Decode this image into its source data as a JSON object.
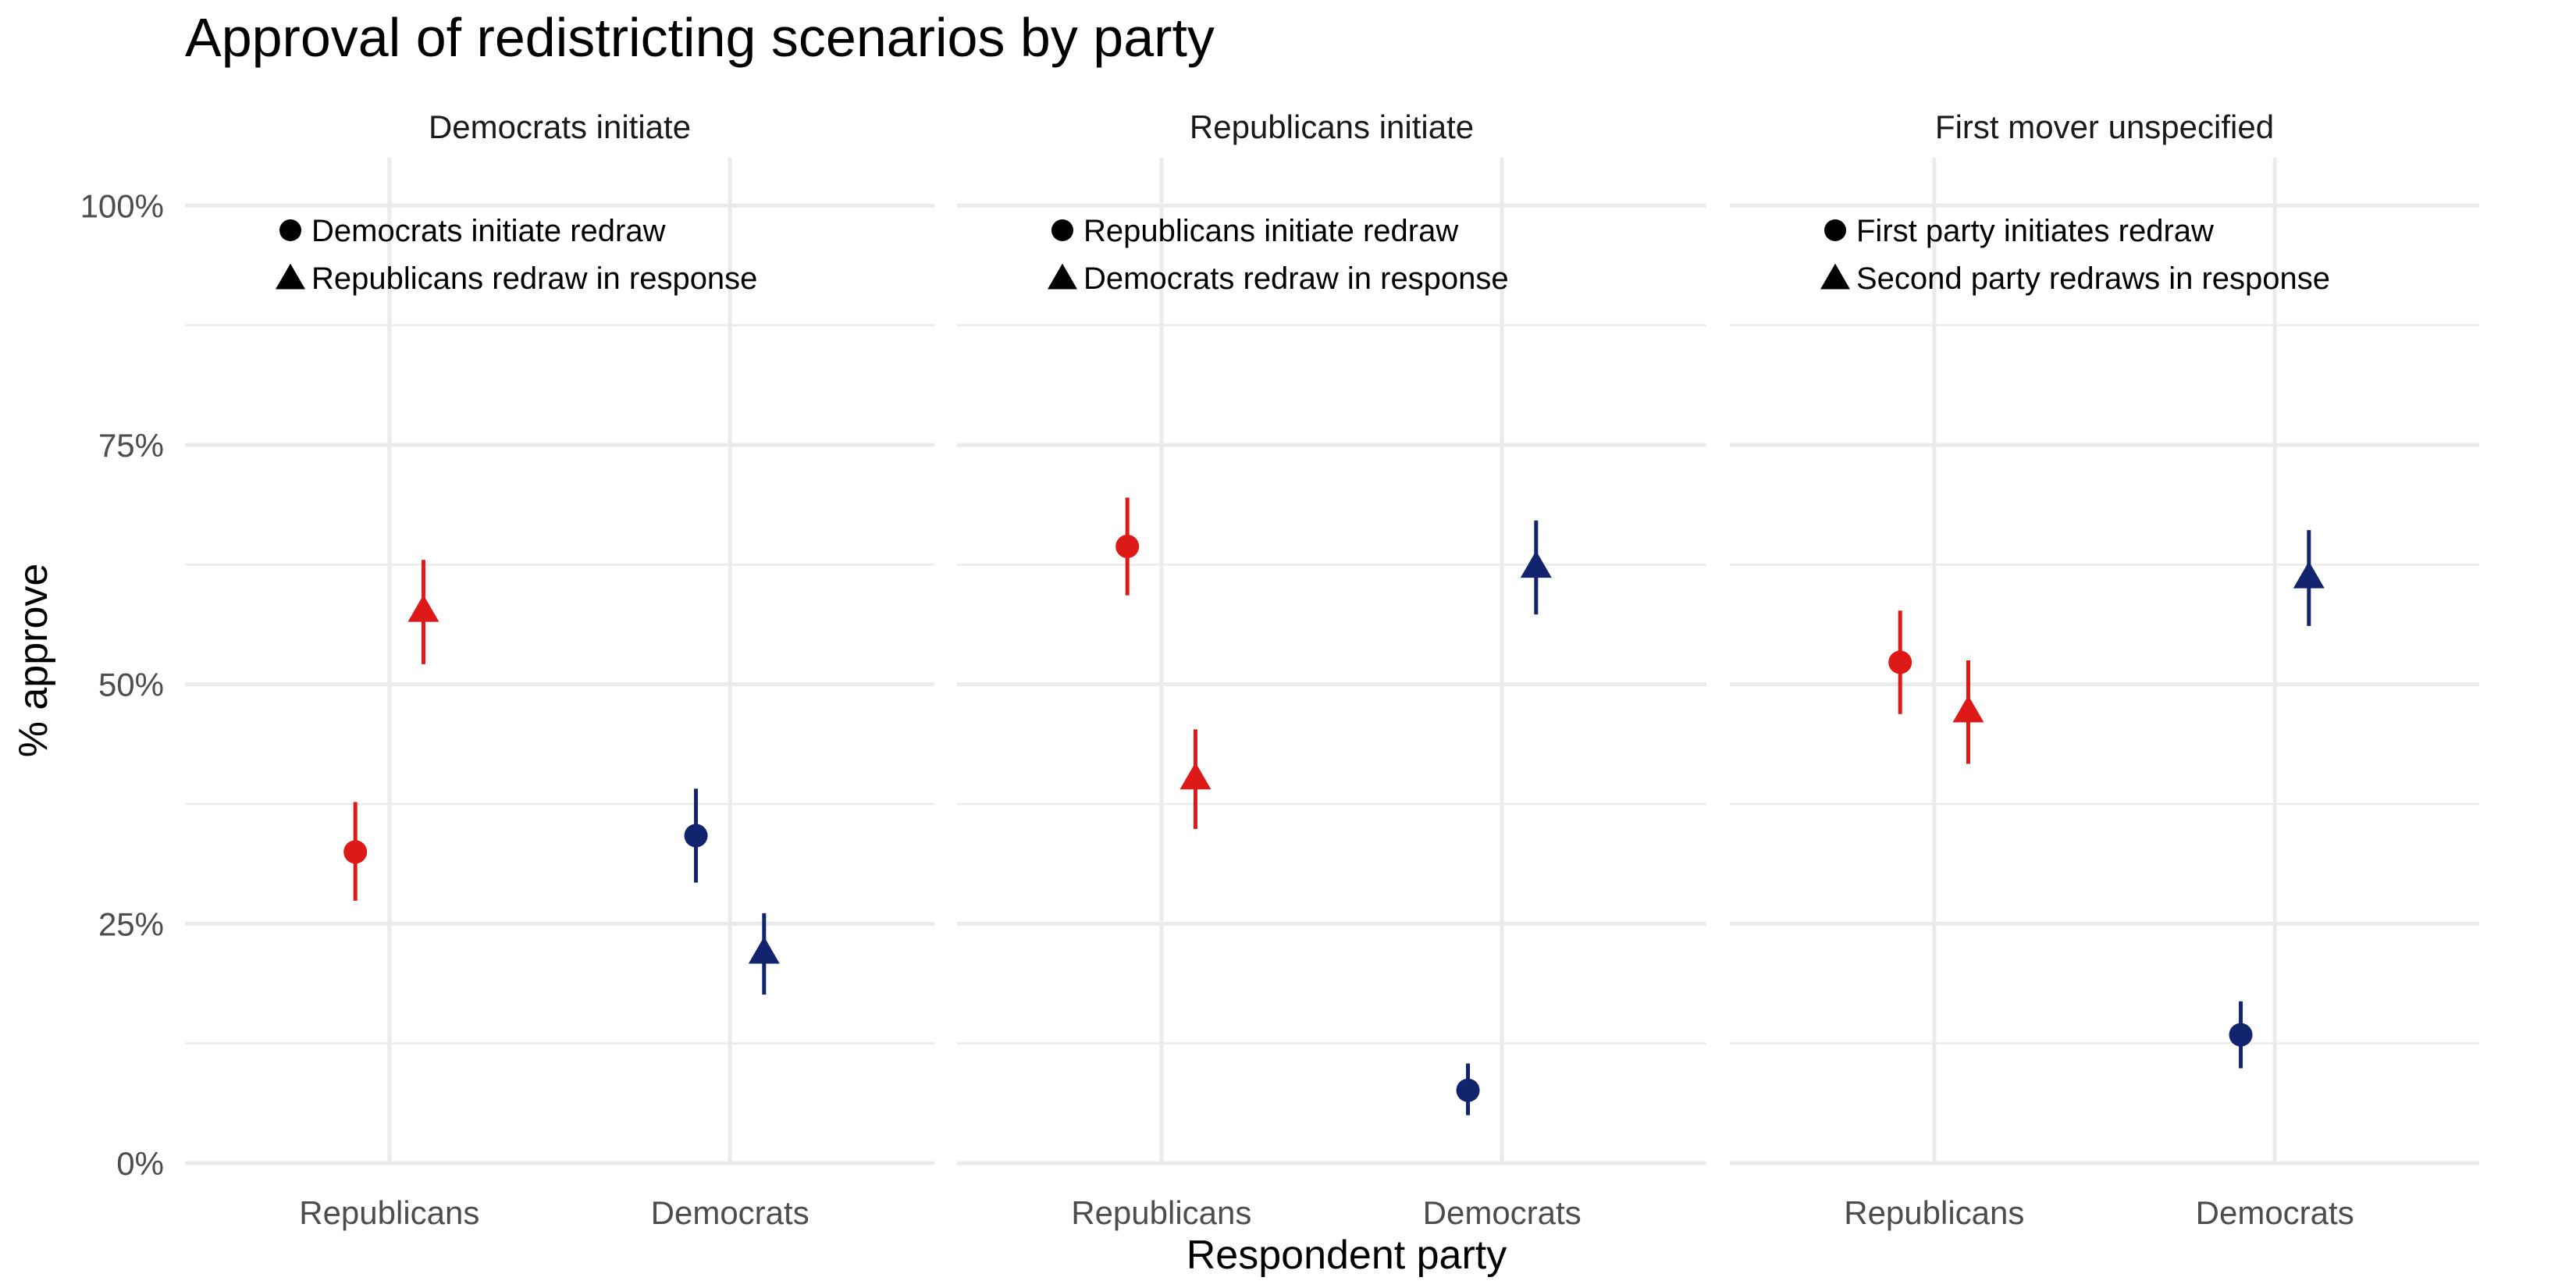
{
  "chart_data": {
    "type": "scatter",
    "subtype": "point-range (faceted)",
    "title": "Approval of redistricting scenarios by party",
    "xlabel": "Respondent party",
    "ylabel": "% approve",
    "ylim": [
      0,
      105
    ],
    "y_ticks": [
      0,
      25,
      50,
      75,
      100
    ],
    "y_tick_labels": [
      "0%",
      "25%",
      "50%",
      "75%",
      "100%"
    ],
    "grid": true,
    "categories": [
      "Republicans",
      "Democrats"
    ],
    "colors": {
      "Republicans": "#DD1A17",
      "Democrats": "#13246E"
    },
    "facets": [
      {
        "strip": "Democrats initiate",
        "legend_position": "top-left",
        "legend": [
          {
            "shape": "circle",
            "label": "Democrats initiate redraw"
          },
          {
            "shape": "triangle",
            "label": "Republicans redraw in response"
          }
        ],
        "points": [
          {
            "category": "Republicans",
            "shape": "circle",
            "value": 32.5,
            "lower": 27.4,
            "upper": 37.7
          },
          {
            "category": "Republicans",
            "shape": "triangle",
            "value": 57.6,
            "lower": 52.1,
            "upper": 63.0
          },
          {
            "category": "Democrats",
            "shape": "circle",
            "value": 34.2,
            "lower": 29.3,
            "upper": 39.1
          },
          {
            "category": "Democrats",
            "shape": "triangle",
            "value": 21.9,
            "lower": 17.6,
            "upper": 26.1
          }
        ]
      },
      {
        "strip": "Republicans initiate",
        "legend_position": "top-left",
        "legend": [
          {
            "shape": "circle",
            "label": "Republicans initiate redraw"
          },
          {
            "shape": "triangle",
            "label": "Democrats redraw in response"
          }
        ],
        "points": [
          {
            "category": "Republicans",
            "shape": "circle",
            "value": 64.4,
            "lower": 59.3,
            "upper": 69.5
          },
          {
            "category": "Republicans",
            "shape": "triangle",
            "value": 40.1,
            "lower": 34.9,
            "upper": 45.3
          },
          {
            "category": "Democrats",
            "shape": "circle",
            "value": 7.6,
            "lower": 5.0,
            "upper": 10.4
          },
          {
            "category": "Democrats",
            "shape": "triangle",
            "value": 62.2,
            "lower": 57.3,
            "upper": 67.1
          }
        ]
      },
      {
        "strip": "First mover unspecified",
        "legend_position": "top-left",
        "legend": [
          {
            "shape": "circle",
            "label": "First party initiates redraw"
          },
          {
            "shape": "triangle",
            "label": "Second party redraws in response"
          }
        ],
        "points": [
          {
            "category": "Republicans",
            "shape": "circle",
            "value": 52.3,
            "lower": 46.9,
            "upper": 57.7
          },
          {
            "category": "Republicans",
            "shape": "triangle",
            "value": 47.1,
            "lower": 41.7,
            "upper": 52.5
          },
          {
            "category": "Democrats",
            "shape": "circle",
            "value": 13.4,
            "lower": 9.9,
            "upper": 16.9
          },
          {
            "category": "Democrats",
            "shape": "triangle",
            "value": 61.1,
            "lower": 56.1,
            "upper": 66.1
          }
        ]
      }
    ]
  }
}
